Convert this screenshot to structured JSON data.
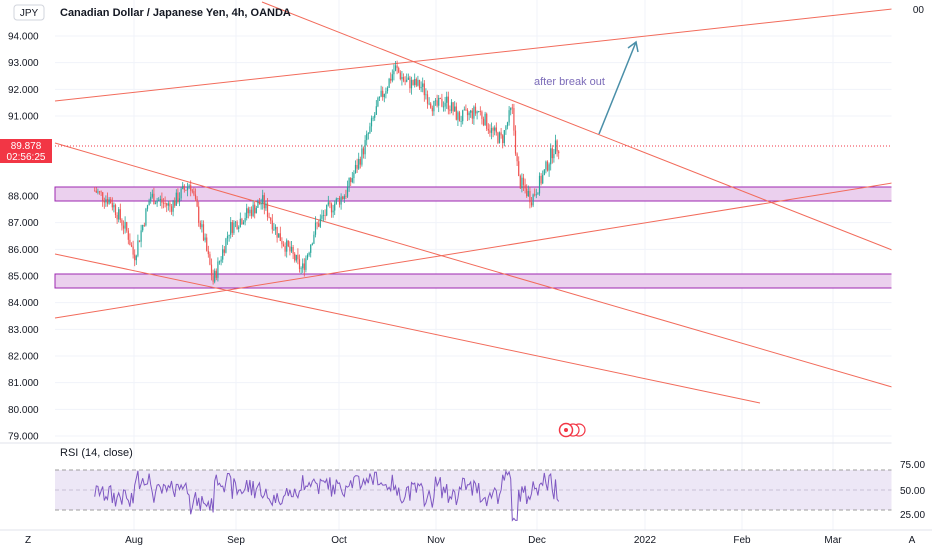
{
  "header": {
    "symbol_badge": "JPY",
    "title": "Canadian Dollar / Japanese Yen, 4h, OANDA"
  },
  "price_axis": {
    "tick_labels": [
      "94.000",
      "93.000",
      "92.000",
      "91.000",
      "89.878",
      "02:56:25",
      "88.000",
      "87.000",
      "86.000",
      "85.000",
      "84.000",
      "83.000",
      "82.000",
      "81.000",
      "80.000",
      "79.000"
    ],
    "top_partial_label": "00",
    "current_price": "89.878",
    "countdown": "02:56:25",
    "current_price_color": "#f23645"
  },
  "time_axis": {
    "labels": [
      "Aug",
      "Sep",
      "Oct",
      "Nov",
      "Dec",
      "2022",
      "Feb",
      "Mar"
    ]
  },
  "annotation": {
    "text": "after break out",
    "arrow_color": "#4a8fa8"
  },
  "rsi": {
    "label": "RSI (14, close)",
    "levels": [
      "75.00",
      "50.00",
      "25.00"
    ],
    "line_color": "#7e57c2",
    "band_color": "#ede7f6"
  },
  "corner_buttons": {
    "left": "Z",
    "right": "A"
  },
  "chart_data": {
    "type": "candlestick",
    "title": "Canadian Dollar / Japanese Yen, 4h, OANDA",
    "ylim": [
      79.0,
      95.0
    ],
    "x_ticks": [
      "Aug",
      "Sep",
      "Oct",
      "Nov",
      "Dec",
      "2022",
      "Feb",
      "Mar"
    ],
    "last_price": 89.878,
    "colors": {
      "up": "#26a69a",
      "down": "#ef5350",
      "trendline": "#f26b5b",
      "zone_fill": "#e6c9ec",
      "zone_border": "#9c27b0"
    },
    "price_path": [
      [
        "Jul 20",
        88.2
      ],
      [
        "Jul 25",
        87.8
      ],
      [
        "Jul 30",
        86.6
      ],
      [
        "Aug 1",
        85.7
      ],
      [
        "Aug 6",
        88.0
      ],
      [
        "Aug 12",
        87.6
      ],
      [
        "Aug 18",
        88.5
      ],
      [
        "Aug 22",
        86.5
      ],
      [
        "Aug 25",
        84.8
      ],
      [
        "Aug 30",
        86.8
      ],
      [
        "Sep 3",
        87.2
      ],
      [
        "Sep 9",
        87.8
      ],
      [
        "Sep 14",
        86.5
      ],
      [
        "Sep 18",
        85.8
      ],
      [
        "Sep 21",
        85.2
      ],
      [
        "Sep 25",
        86.8
      ],
      [
        "Sep 29",
        87.5
      ],
      [
        "Oct 3",
        88.1
      ],
      [
        "Oct 8",
        89.6
      ],
      [
        "Oct 13",
        91.5
      ],
      [
        "Oct 18",
        92.8
      ],
      [
        "Oct 21",
        92.3
      ],
      [
        "Oct 26",
        92.1
      ],
      [
        "Oct 30",
        91.3
      ],
      [
        "Nov 4",
        91.6
      ],
      [
        "Nov 8",
        90.9
      ],
      [
        "Nov 14",
        91.2
      ],
      [
        "Nov 18",
        90.4
      ],
      [
        "Nov 21",
        90.1
      ],
      [
        "Nov 24",
        91.3
      ],
      [
        "Nov 26",
        88.6
      ],
      [
        "Nov 30",
        87.9
      ],
      [
        "Dec 3",
        88.8
      ],
      [
        "Dec 6",
        89.8
      ],
      [
        "Dec 8",
        89.88
      ]
    ],
    "support_zones": [
      [
        87.83,
        88.37
      ],
      [
        84.55,
        85.1
      ]
    ],
    "rsi_levels": [
      75,
      50,
      25
    ]
  }
}
